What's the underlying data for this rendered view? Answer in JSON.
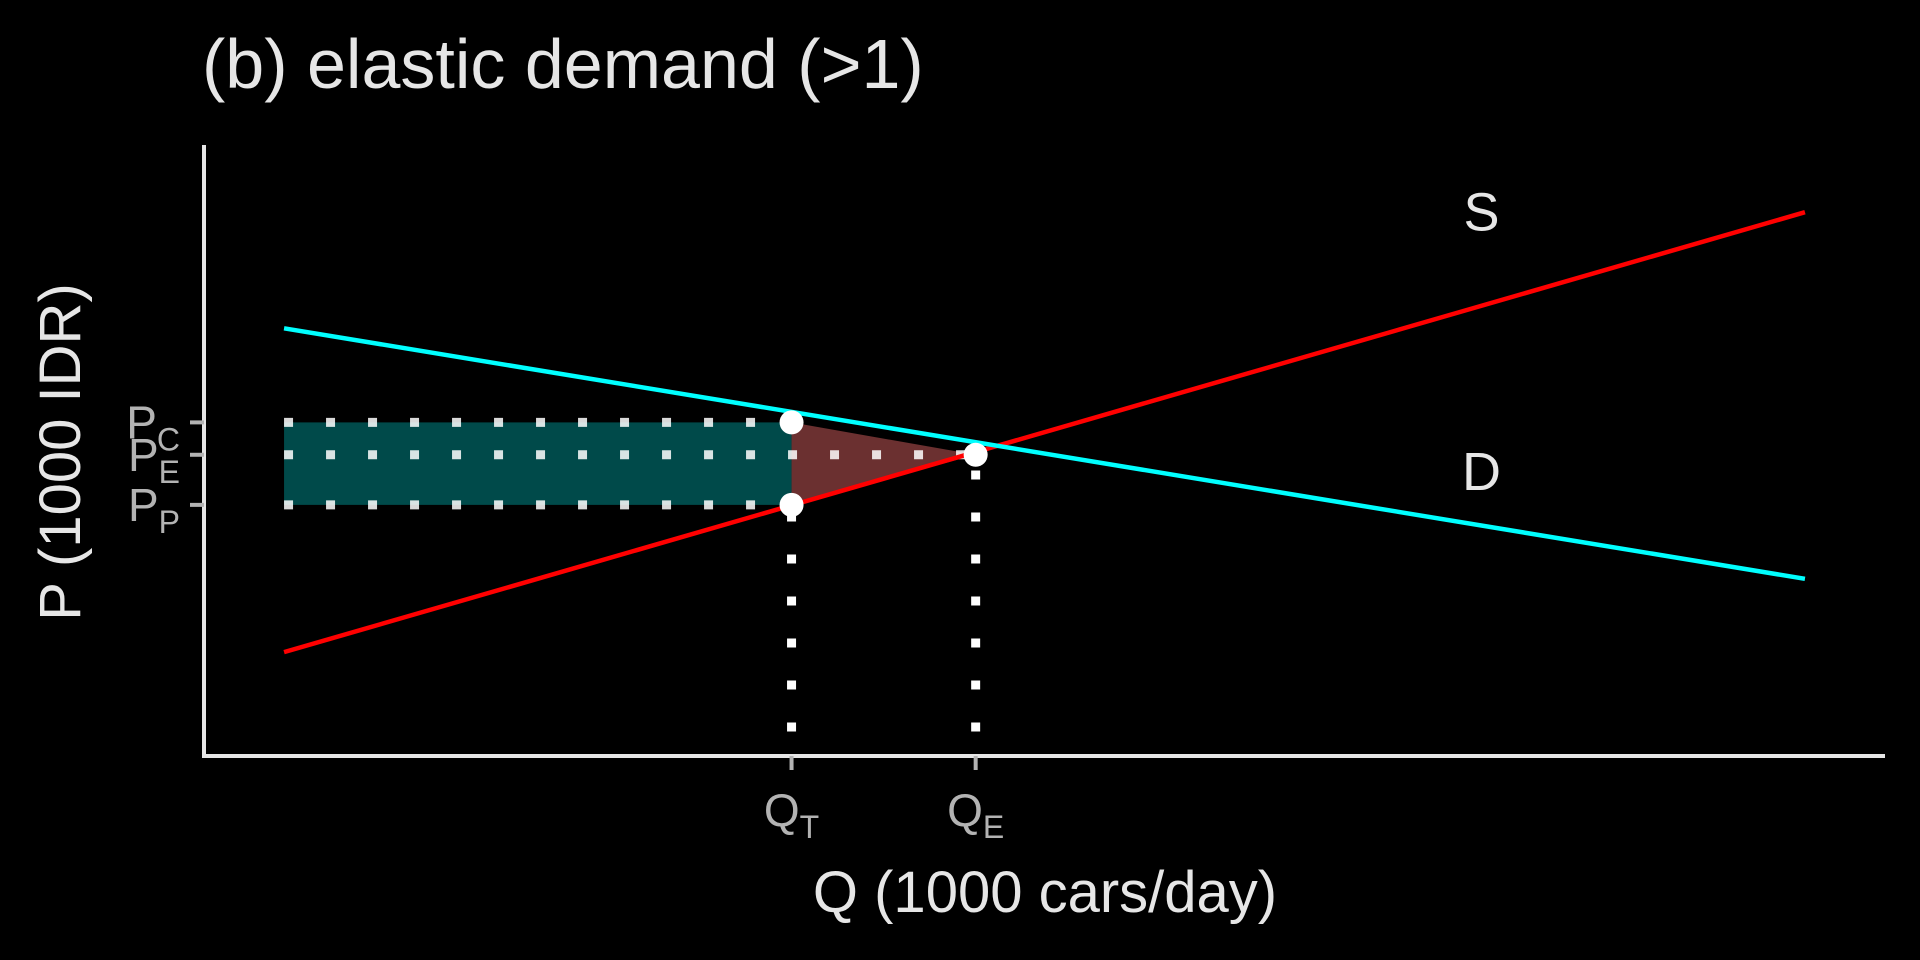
{
  "chart_data": {
    "type": "line",
    "title": "(b) elastic demand (>1)",
    "xlabel": "Q (1000 cars/day)",
    "ylabel": "P (1000 IDR)",
    "xlim": [
      0,
      10.5
    ],
    "ylim": [
      0,
      10
    ],
    "series": [
      {
        "name": "S",
        "color": "#ff0000",
        "x": [
          0.5,
          10
        ],
        "y": [
          1.7,
          8.9
        ]
      },
      {
        "name": "D",
        "color": "#00ffff",
        "x": [
          0.5,
          10
        ],
        "y": [
          7.0,
          2.9
        ]
      }
    ],
    "x_ticks": [
      {
        "main": "Q",
        "sub": "T",
        "value": 3.67
      },
      {
        "main": "Q",
        "sub": "E",
        "value": 4.82
      }
    ],
    "y_ticks": [
      {
        "main": "P",
        "sub": "C",
        "value": 5.46
      },
      {
        "main": "P",
        "sub": "E",
        "value": 4.93
      },
      {
        "main": "P",
        "sub": "P",
        "value": 4.11
      }
    ],
    "points": [
      {
        "x": 3.67,
        "y": 5.46
      },
      {
        "x": 3.67,
        "y": 4.11
      },
      {
        "x": 4.82,
        "y": 4.93
      }
    ],
    "shaded_regions": [
      {
        "kind": "tax revenue rectangle",
        "color": "#004a4a",
        "x": [
          0.5,
          3.67
        ],
        "y": [
          4.11,
          5.46
        ]
      },
      {
        "kind": "deadweight loss triangle",
        "color": "#6b3030",
        "vertices": [
          [
            3.67,
            5.46
          ],
          [
            3.67,
            4.11
          ],
          [
            4.82,
            4.93
          ]
        ]
      }
    ],
    "reference_lines": [
      {
        "axis": "y",
        "value": 5.46,
        "from_x": 0.5,
        "to_x": 3.67,
        "style": "dotted",
        "color": "#ffffff"
      },
      {
        "axis": "y",
        "value": 4.93,
        "from_x": 0.5,
        "to_x": 4.82,
        "style": "dotted",
        "color": "#ffffff"
      },
      {
        "axis": "y",
        "value": 4.11,
        "from_x": 0.5,
        "to_x": 3.67,
        "style": "dotted",
        "color": "#ffffff"
      },
      {
        "axis": "x",
        "value": 3.67,
        "from_y": 0.4,
        "to_y": 4.11,
        "style": "dotted",
        "color": "#ffffff"
      },
      {
        "axis": "x",
        "value": 4.82,
        "from_y": 0.4,
        "to_y": 4.93,
        "style": "dotted",
        "color": "#ffffff"
      }
    ],
    "curve_labels": [
      {
        "text": "S",
        "x": 7.98,
        "y": 8.6
      },
      {
        "text": "D",
        "x": 7.98,
        "y": 4.35
      }
    ],
    "grid": false,
    "legend": "none"
  }
}
